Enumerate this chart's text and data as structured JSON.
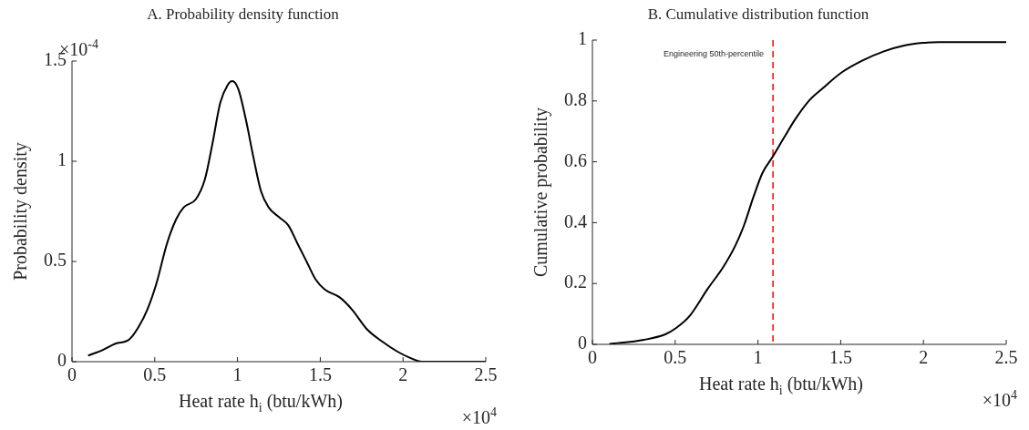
{
  "chart_data": [
    {
      "type": "line",
      "title": "A. Probability density function",
      "xlabel": "Heat rate h$_{i}$ (btu/kWh)",
      "ylabel": "Probability density",
      "x": [
        0.097,
        0.189,
        0.262,
        0.345,
        0.4,
        0.455,
        0.51,
        0.574,
        0.629,
        0.675,
        0.748,
        0.803,
        0.849,
        0.895,
        0.94,
        0.968,
        1.005,
        1.05,
        1.096,
        1.142,
        1.188,
        1.252,
        1.307,
        1.362,
        1.417,
        1.472,
        1.527,
        1.619,
        1.692,
        1.784,
        1.875,
        1.967,
        2.04,
        2.114,
        2.26,
        2.5
      ],
      "series": [
        {
          "color": "#000000",
          "values": [
            0.03,
            0.06,
            0.09,
            0.11,
            0.17,
            0.26,
            0.39,
            0.59,
            0.71,
            0.77,
            0.81,
            0.91,
            1.09,
            1.29,
            1.38,
            1.4,
            1.36,
            1.21,
            1.02,
            0.85,
            0.77,
            0.72,
            0.68,
            0.59,
            0.5,
            0.41,
            0.36,
            0.32,
            0.26,
            0.16,
            0.1,
            0.05,
            0.02,
            0,
            0,
            0
          ]
        }
      ],
      "xlim": [
        0,
        2.5
      ],
      "xticks": [
        0,
        0.5,
        1,
        1.5,
        2,
        2.5
      ],
      "ylim": [
        0,
        1.5
      ],
      "yticks": [
        0,
        0.5,
        1,
        1.5
      ],
      "annotations": [
        "×10$^{-4}$",
        "×10$^{4}$"
      ]
    },
    {
      "type": "line",
      "title": "B. Cumulative distribution function",
      "xlabel": "Heat rate h$_{i}$ (btu/kWh)",
      "ylabel": "Cumulative probability",
      "x": [
        0.101,
        0.312,
        0.44,
        0.504,
        0.587,
        0.697,
        0.789,
        0.862,
        0.917,
        0.972,
        1.027,
        1.091,
        1.156,
        1.229,
        1.312,
        1.394,
        1.504,
        1.632,
        1.761,
        1.889,
        1.999,
        2.091,
        2.5
      ],
      "series": [
        {
          "color": "#000000",
          "values": [
            0.001,
            0.015,
            0.033,
            0.053,
            0.093,
            0.183,
            0.253,
            0.323,
            0.393,
            0.483,
            0.563,
            0.618,
            0.678,
            0.743,
            0.803,
            0.843,
            0.893,
            0.933,
            0.963,
            0.983,
            0.991,
            0.993,
            0.993
          ]
        }
      ],
      "xlim": [
        0,
        2.5
      ],
      "xticks": [
        0,
        0.5,
        1,
        1.5,
        2,
        2.5
      ],
      "ylim": [
        0,
        1
      ],
      "yticks": [
        0,
        0.2,
        0.4,
        0.6,
        0.8,
        1
      ],
      "ref_lines": [
        {
          "axis": "x",
          "value": 1.091,
          "label": "Engineering 50th-percentile",
          "color": "#ff0000",
          "line_style": "dashed"
        }
      ],
      "annotations": [
        "×10$^{4}$"
      ]
    }
  ]
}
